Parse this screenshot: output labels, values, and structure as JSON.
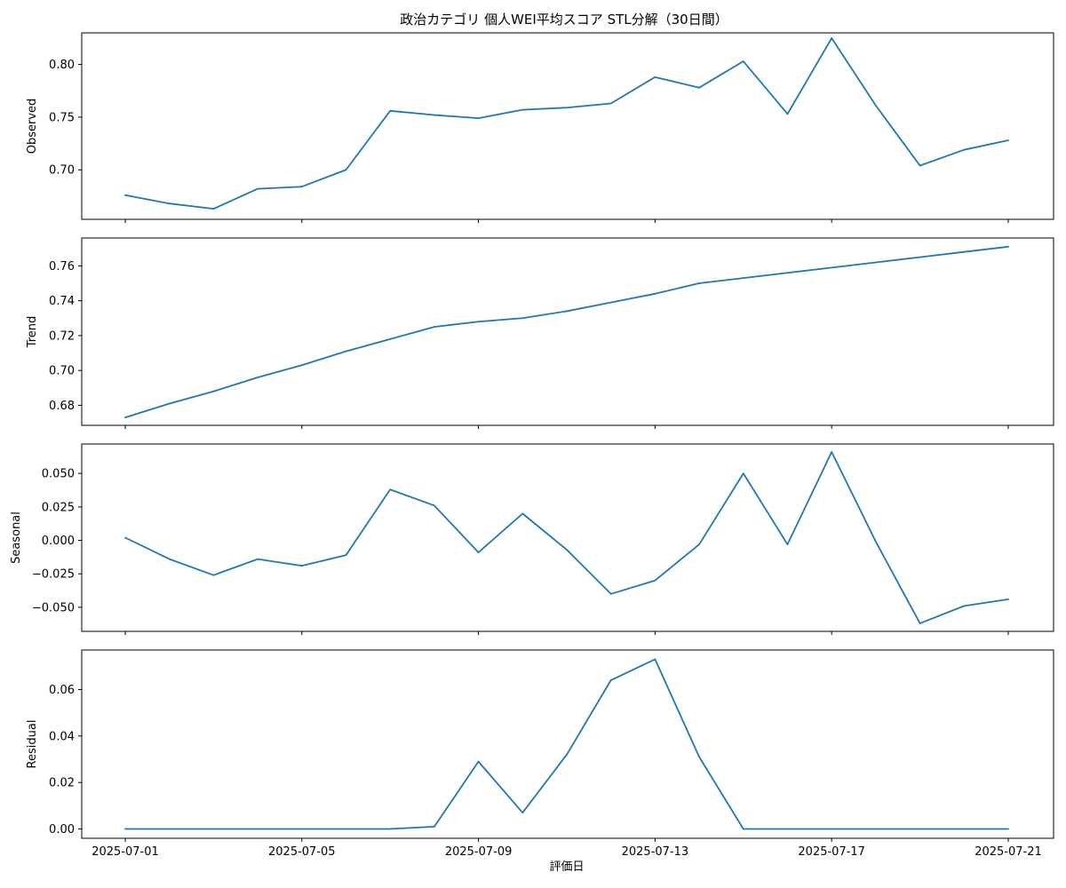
{
  "chart_data": {
    "type": "line",
    "title": "政治カテゴリ 個人WEI平均スコア STL分解（30日間）",
    "xlabel": "評価日",
    "x": [
      "2025-07-01",
      "2025-07-02",
      "2025-07-03",
      "2025-07-04",
      "2025-07-05",
      "2025-07-06",
      "2025-07-07",
      "2025-07-08",
      "2025-07-09",
      "2025-07-10",
      "2025-07-11",
      "2025-07-12",
      "2025-07-13",
      "2025-07-14",
      "2025-07-15",
      "2025-07-16",
      "2025-07-17",
      "2025-07-18",
      "2025-07-19",
      "2025-07-20",
      "2025-07-21"
    ],
    "x_tick_labels": [
      "2025-07-01",
      "2025-07-05",
      "2025-07-09",
      "2025-07-13",
      "2025-07-17",
      "2025-07-21"
    ],
    "line_color": "#1f77b4",
    "grid": false,
    "panels": [
      {
        "ylabel": "Observed",
        "ylim": [
          0.653,
          0.83
        ],
        "yticks": [
          0.7,
          0.75,
          0.8
        ],
        "ytick_labels": [
          "0.70",
          "0.75",
          "0.80"
        ],
        "values": [
          0.676,
          0.668,
          0.663,
          0.682,
          0.684,
          0.7,
          0.756,
          0.752,
          0.749,
          0.757,
          0.759,
          0.763,
          0.788,
          0.778,
          0.803,
          0.753,
          0.825,
          0.761,
          0.704,
          0.719,
          0.728
        ]
      },
      {
        "ylabel": "Trend",
        "ylim": [
          0.6685,
          0.776
        ],
        "yticks": [
          0.68,
          0.7,
          0.72,
          0.74,
          0.76
        ],
        "ytick_labels": [
          "0.68",
          "0.70",
          "0.72",
          "0.74",
          "0.76"
        ],
        "values": [
          0.673,
          0.681,
          0.688,
          0.696,
          0.703,
          0.711,
          0.718,
          0.725,
          0.728,
          0.73,
          0.734,
          0.739,
          0.744,
          0.75,
          0.753,
          0.756,
          0.759,
          0.762,
          0.765,
          0.768,
          0.771
        ]
      },
      {
        "ylabel": "Seasonal",
        "ylim": [
          -0.068,
          0.072
        ],
        "yticks": [
          -0.05,
          -0.025,
          0.0,
          0.025,
          0.05
        ],
        "ytick_labels": [
          "−0.050",
          "−0.025",
          "0.000",
          "0.025",
          "0.050"
        ],
        "values": [
          0.002,
          -0.014,
          -0.026,
          -0.014,
          -0.019,
          -0.011,
          0.038,
          0.026,
          -0.009,
          0.02,
          -0.007,
          -0.04,
          -0.03,
          -0.003,
          0.05,
          -0.003,
          0.066,
          -0.001,
          -0.062,
          -0.049,
          -0.044
        ]
      },
      {
        "ylabel": "Residual",
        "ylim": [
          -0.004,
          0.077
        ],
        "yticks": [
          0.0,
          0.02,
          0.04,
          0.06
        ],
        "ytick_labels": [
          "0.00",
          "0.02",
          "0.04",
          "0.06"
        ],
        "values": [
          0.0,
          0.0,
          0.0,
          0.0,
          0.0,
          0.0,
          0.0,
          0.001,
          0.029,
          0.007,
          0.032,
          0.064,
          0.073,
          0.031,
          0.0,
          0.0,
          0.0,
          0.0,
          0.0,
          0.0,
          0.0
        ]
      }
    ]
  }
}
